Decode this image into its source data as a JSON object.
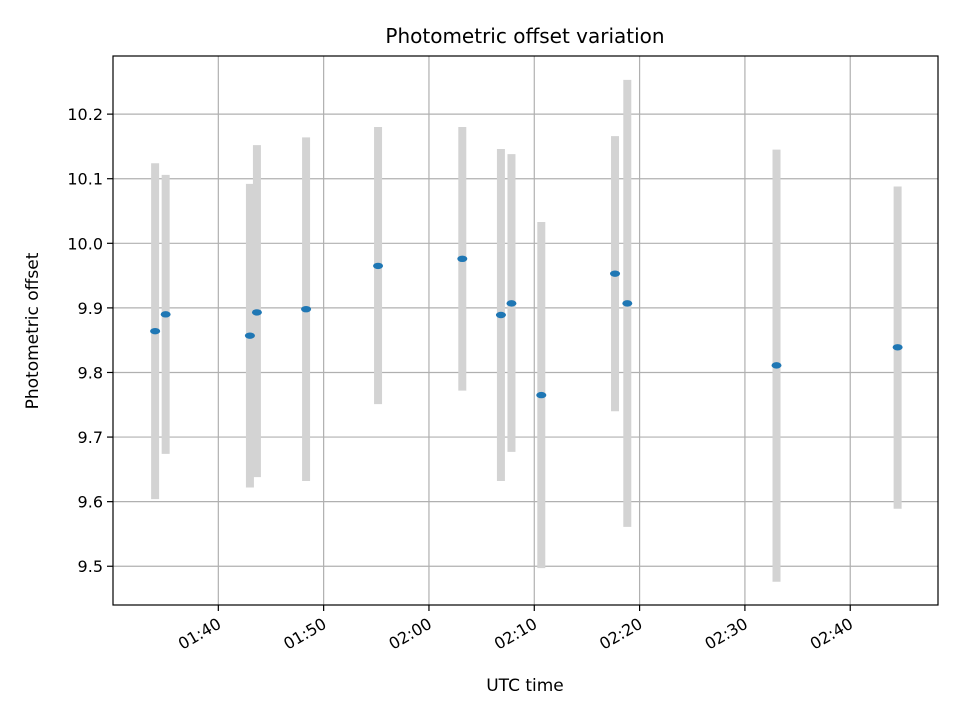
{
  "chart_data": {
    "type": "scatter",
    "title": "Photometric offset variation",
    "xlabel": "UTC time",
    "ylabel": "Photometric offset",
    "xlim": [
      "01:30:00",
      "02:48:20"
    ],
    "ylim": [
      9.44,
      10.29
    ],
    "x_ticks": [
      "01:40",
      "01:50",
      "02:00",
      "02:10",
      "02:20",
      "02:30",
      "02:40"
    ],
    "y_ticks": [
      "9.5",
      "9.6",
      "9.7",
      "9.8",
      "9.9",
      "10.0",
      "10.1",
      "10.2"
    ],
    "grid": true,
    "marker_color": "#1f77b4",
    "errorbar_color": "#d3d3d3",
    "points": [
      {
        "time": "01:34:00",
        "y": 9.864,
        "y_low": 9.604,
        "y_high": 10.124
      },
      {
        "time": "01:35:00",
        "y": 9.89,
        "y_low": 9.674,
        "y_high": 10.106
      },
      {
        "time": "01:43:00",
        "y": 9.857,
        "y_low": 9.622,
        "y_high": 10.092
      },
      {
        "time": "01:43:40",
        "y": 9.893,
        "y_low": 9.638,
        "y_high": 10.152
      },
      {
        "time": "01:48:20",
        "y": 9.898,
        "y_low": 9.632,
        "y_high": 10.164
      },
      {
        "time": "01:55:10",
        "y": 9.965,
        "y_low": 9.751,
        "y_high": 10.18
      },
      {
        "time": "02:03:10",
        "y": 9.976,
        "y_low": 9.772,
        "y_high": 10.18
      },
      {
        "time": "02:06:50",
        "y": 9.889,
        "y_low": 9.632,
        "y_high": 10.146
      },
      {
        "time": "02:07:50",
        "y": 9.907,
        "y_low": 9.677,
        "y_high": 10.138
      },
      {
        "time": "02:10:40",
        "y": 9.765,
        "y_low": 9.497,
        "y_high": 10.033
      },
      {
        "time": "02:17:40",
        "y": 9.953,
        "y_low": 9.74,
        "y_high": 10.166
      },
      {
        "time": "02:18:50",
        "y": 9.907,
        "y_low": 9.561,
        "y_high": 10.253
      },
      {
        "time": "02:33:00",
        "y": 9.811,
        "y_low": 9.476,
        "y_high": 10.145
      },
      {
        "time": "02:44:30",
        "y": 9.839,
        "y_low": 9.589,
        "y_high": 10.088
      }
    ]
  }
}
